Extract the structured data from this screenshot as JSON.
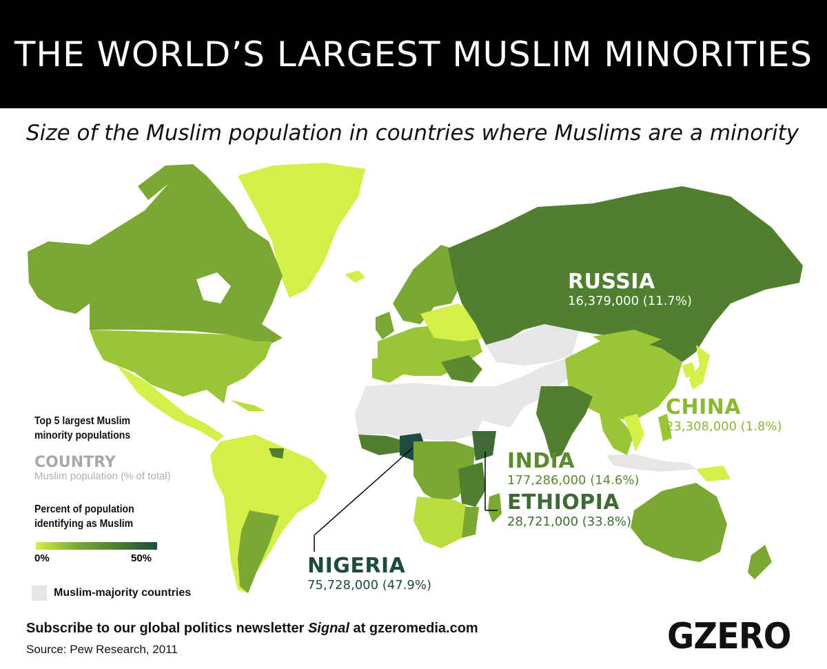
{
  "title": "THE WORLD’S LARGEST MUSLIM MINORITIES",
  "subtitle": "Size of the Muslim population in countries where Muslims are a minority",
  "callouts": {
    "russia": {
      "name": "RUSSIA",
      "value": "16,379,000 (11.7%)",
      "percent": 11.7,
      "color": "#ffffff"
    },
    "china": {
      "name": "CHINA",
      "value": "23,308,000 (1.8%)",
      "percent": 1.8,
      "color": "#8ab832"
    },
    "india": {
      "name": "INDIA",
      "value": "177,286,000 (14.6%)",
      "percent": 14.6,
      "color": "#5b8a2f"
    },
    "ethiopia": {
      "name": "ETHIOPIA",
      "value": "28,721,000 (33.8%)",
      "percent": 33.8,
      "color": "#3f6a35"
    },
    "nigeria": {
      "name": "NIGERIA",
      "value": "75,728,000 (47.9%)",
      "percent": 47.9,
      "color": "#1f4a3f"
    }
  },
  "legend": {
    "top5_title_line1": "Top 5 largest Muslim",
    "top5_title_line2": "minority populations",
    "country_word": "COUNTRY",
    "country_sub": "Muslim population (% of total)",
    "pct_title_line1": "Percent of population",
    "pct_title_line2": "identifying as Muslim",
    "grad_min": "0%",
    "grad_max": "50%",
    "majority_label": "Muslim-majority countries"
  },
  "colors": {
    "low": "#d3f04a",
    "mid": "#7ba832",
    "high": "#4f7f2f",
    "max": "#1f4a3f",
    "majority": "#e6e6e6"
  },
  "footer": {
    "newsletter_prefix": "Subscribe to our global politics newsletter ",
    "newsletter_name": "Signal",
    "newsletter_suffix": " at gzeromedia.com",
    "source": "Source: Pew Research, 2011"
  },
  "logo": "GZERO"
}
